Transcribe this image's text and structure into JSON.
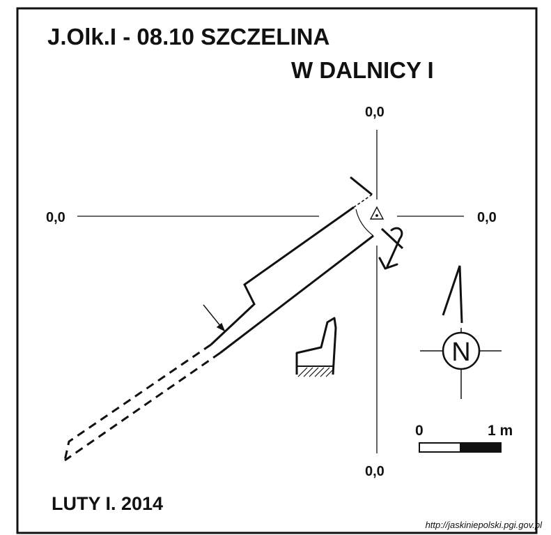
{
  "title": {
    "line1": "J.Olk.I - 08.10  SZCZELINA",
    "line2": "W DALNICY I"
  },
  "axes": {
    "top": "0,0",
    "left": "0,0",
    "right": "0,0",
    "bottom": "0,0"
  },
  "north_label": "N",
  "scale": {
    "start_label": "0",
    "end_label": "1 m"
  },
  "date": "LUTY I. 2014",
  "source_url": "http://jaskiniepolski.pgi.gov.pl",
  "colors": {
    "ink": "#111111",
    "background": "#ffffff"
  }
}
